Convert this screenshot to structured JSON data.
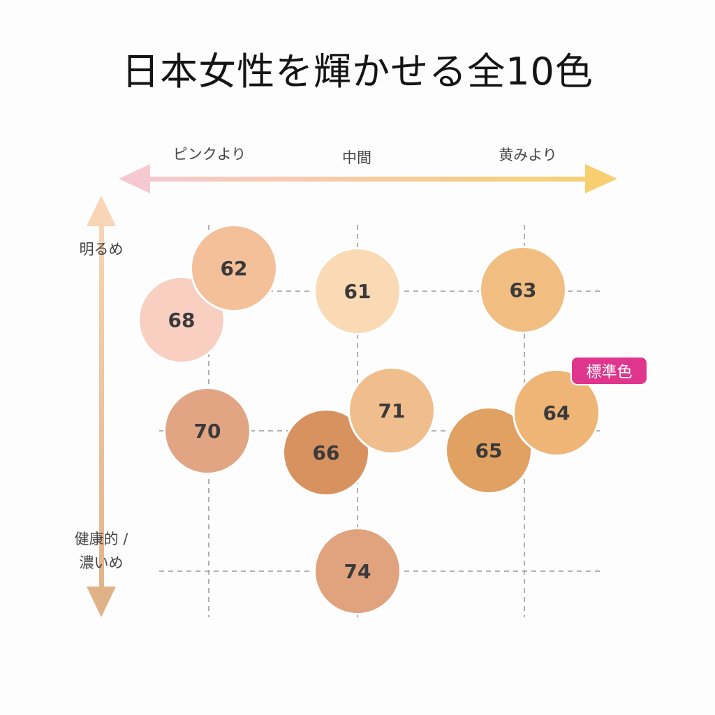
{
  "title": "日本女性を輝かせる全10色",
  "axis_x": {
    "left": "ピンクより",
    "center": "中間",
    "right": "黄みより"
  },
  "axis_y": {
    "top": "明るめ",
    "bottom_line1": "健康的 /",
    "bottom_line2": "濃いめ"
  },
  "badge": "標準色",
  "shades": [
    {
      "id": "s68",
      "label": "68",
      "color": "#f8cfc0"
    },
    {
      "id": "s62",
      "label": "62",
      "color": "#f3c09a"
    },
    {
      "id": "s61",
      "label": "61",
      "color": "#fadab4"
    },
    {
      "id": "s63",
      "label": "63",
      "color": "#f1bd80"
    },
    {
      "id": "s70",
      "label": "70",
      "color": "#e2a583"
    },
    {
      "id": "s66",
      "label": "66",
      "color": "#d89260"
    },
    {
      "id": "s71",
      "label": "71",
      "color": "#f0bd8c"
    },
    {
      "id": "s65",
      "label": "65",
      "color": "#e0a162"
    },
    {
      "id": "s64",
      "label": "64",
      "color": "#efb577"
    },
    {
      "id": "s74",
      "label": "74",
      "color": "#e0a37e"
    }
  ],
  "colors": {
    "arrow_left": "#f5c9cf",
    "arrow_right": "#f7cf71",
    "arrow_top": "#f8d5b6",
    "arrow_bottom": "#e0b287",
    "grid": "#9a9a9a",
    "badge": "#e0358c"
  }
}
